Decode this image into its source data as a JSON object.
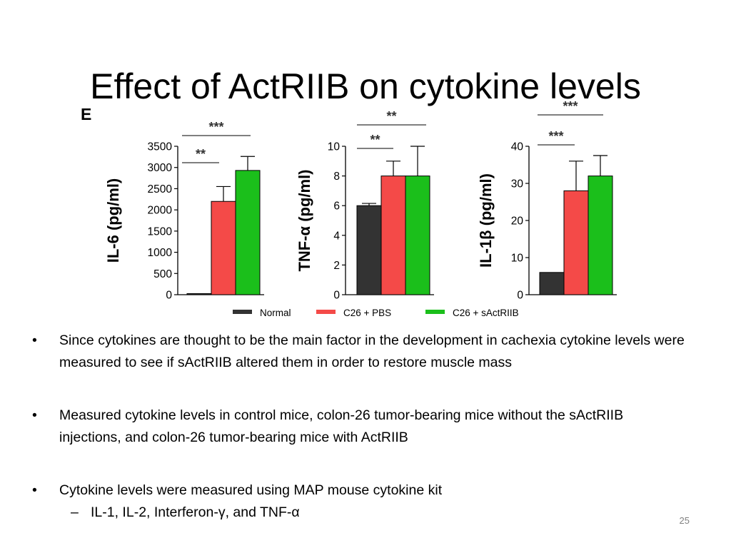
{
  "slide": {
    "title": "Effect of ActRIIB on cytokine levels",
    "panel_letter": "E",
    "slide_number": "25"
  },
  "colors": {
    "Normal": "#333333",
    "C26 + PBS": "#f44a48",
    "C26 + sActRIIB": "#1bbf1b"
  },
  "chart_data": [
    {
      "type": "bar",
      "ylabel": "IL-6 (pg/ml)",
      "ylim": [
        0,
        3500
      ],
      "yticks": [
        "0",
        "500",
        "1000",
        "1500",
        "2000",
        "2500",
        "3000",
        "3500"
      ],
      "categories": [
        "Normal",
        "C26 + PBS",
        "C26 + sActRIIB"
      ],
      "values": [
        20,
        2200,
        2930
      ],
      "errors": [
        0,
        350,
        330
      ],
      "significance": [
        {
          "from": 0,
          "to": 1,
          "label": "**"
        },
        {
          "from": 0,
          "to": 2,
          "label": "***"
        }
      ]
    },
    {
      "type": "bar",
      "ylabel": "TNF-α (pg/ml)",
      "ylim": [
        0,
        10
      ],
      "yticks": [
        "0",
        "2",
        "4",
        "6",
        "8",
        "10"
      ],
      "categories": [
        "Normal",
        "C26 + PBS",
        "C26 + sActRIIB"
      ],
      "values": [
        6,
        8,
        8
      ],
      "errors": [
        0.15,
        1,
        2
      ],
      "significance": [
        {
          "from": 0,
          "to": 1,
          "label": "**"
        },
        {
          "from": 0,
          "to": 2,
          "label": "**"
        }
      ]
    },
    {
      "type": "bar",
      "ylabel": "IL-1β (pg/ml)",
      "ylim": [
        0,
        40
      ],
      "yticks": [
        "0",
        "10",
        "20",
        "30",
        "40"
      ],
      "categories": [
        "Normal",
        "C26 + PBS",
        "C26 + sActRIIB"
      ],
      "values": [
        6,
        28,
        32
      ],
      "errors": [
        0,
        8,
        5.5
      ],
      "significance": [
        {
          "from": 0,
          "to": 1,
          "label": "***"
        },
        {
          "from": 0,
          "to": 2,
          "label": "***"
        }
      ]
    }
  ],
  "legend": [
    "Normal",
    "C26 + PBS",
    "C26 + sActRIIB"
  ],
  "bullets": [
    "Since cytokines are thought to be the main factor in the development in cachexia cytokine levels were measured  to see if sActRIIB altered them in order to restore muscle mass",
    "Measured cytokine levels in control mice, colon-26 tumor-bearing mice without the sActRIIB injections, and colon-26 tumor-bearing mice with ActRIIB",
    "Cytokine levels were measured using MAP mouse cytokine kit"
  ],
  "sub_bullets": [
    "IL-1, IL-2, Interferon-γ, and TNF-α"
  ],
  "bullet_symbol": "•",
  "sub_bullet_symbol": "–"
}
